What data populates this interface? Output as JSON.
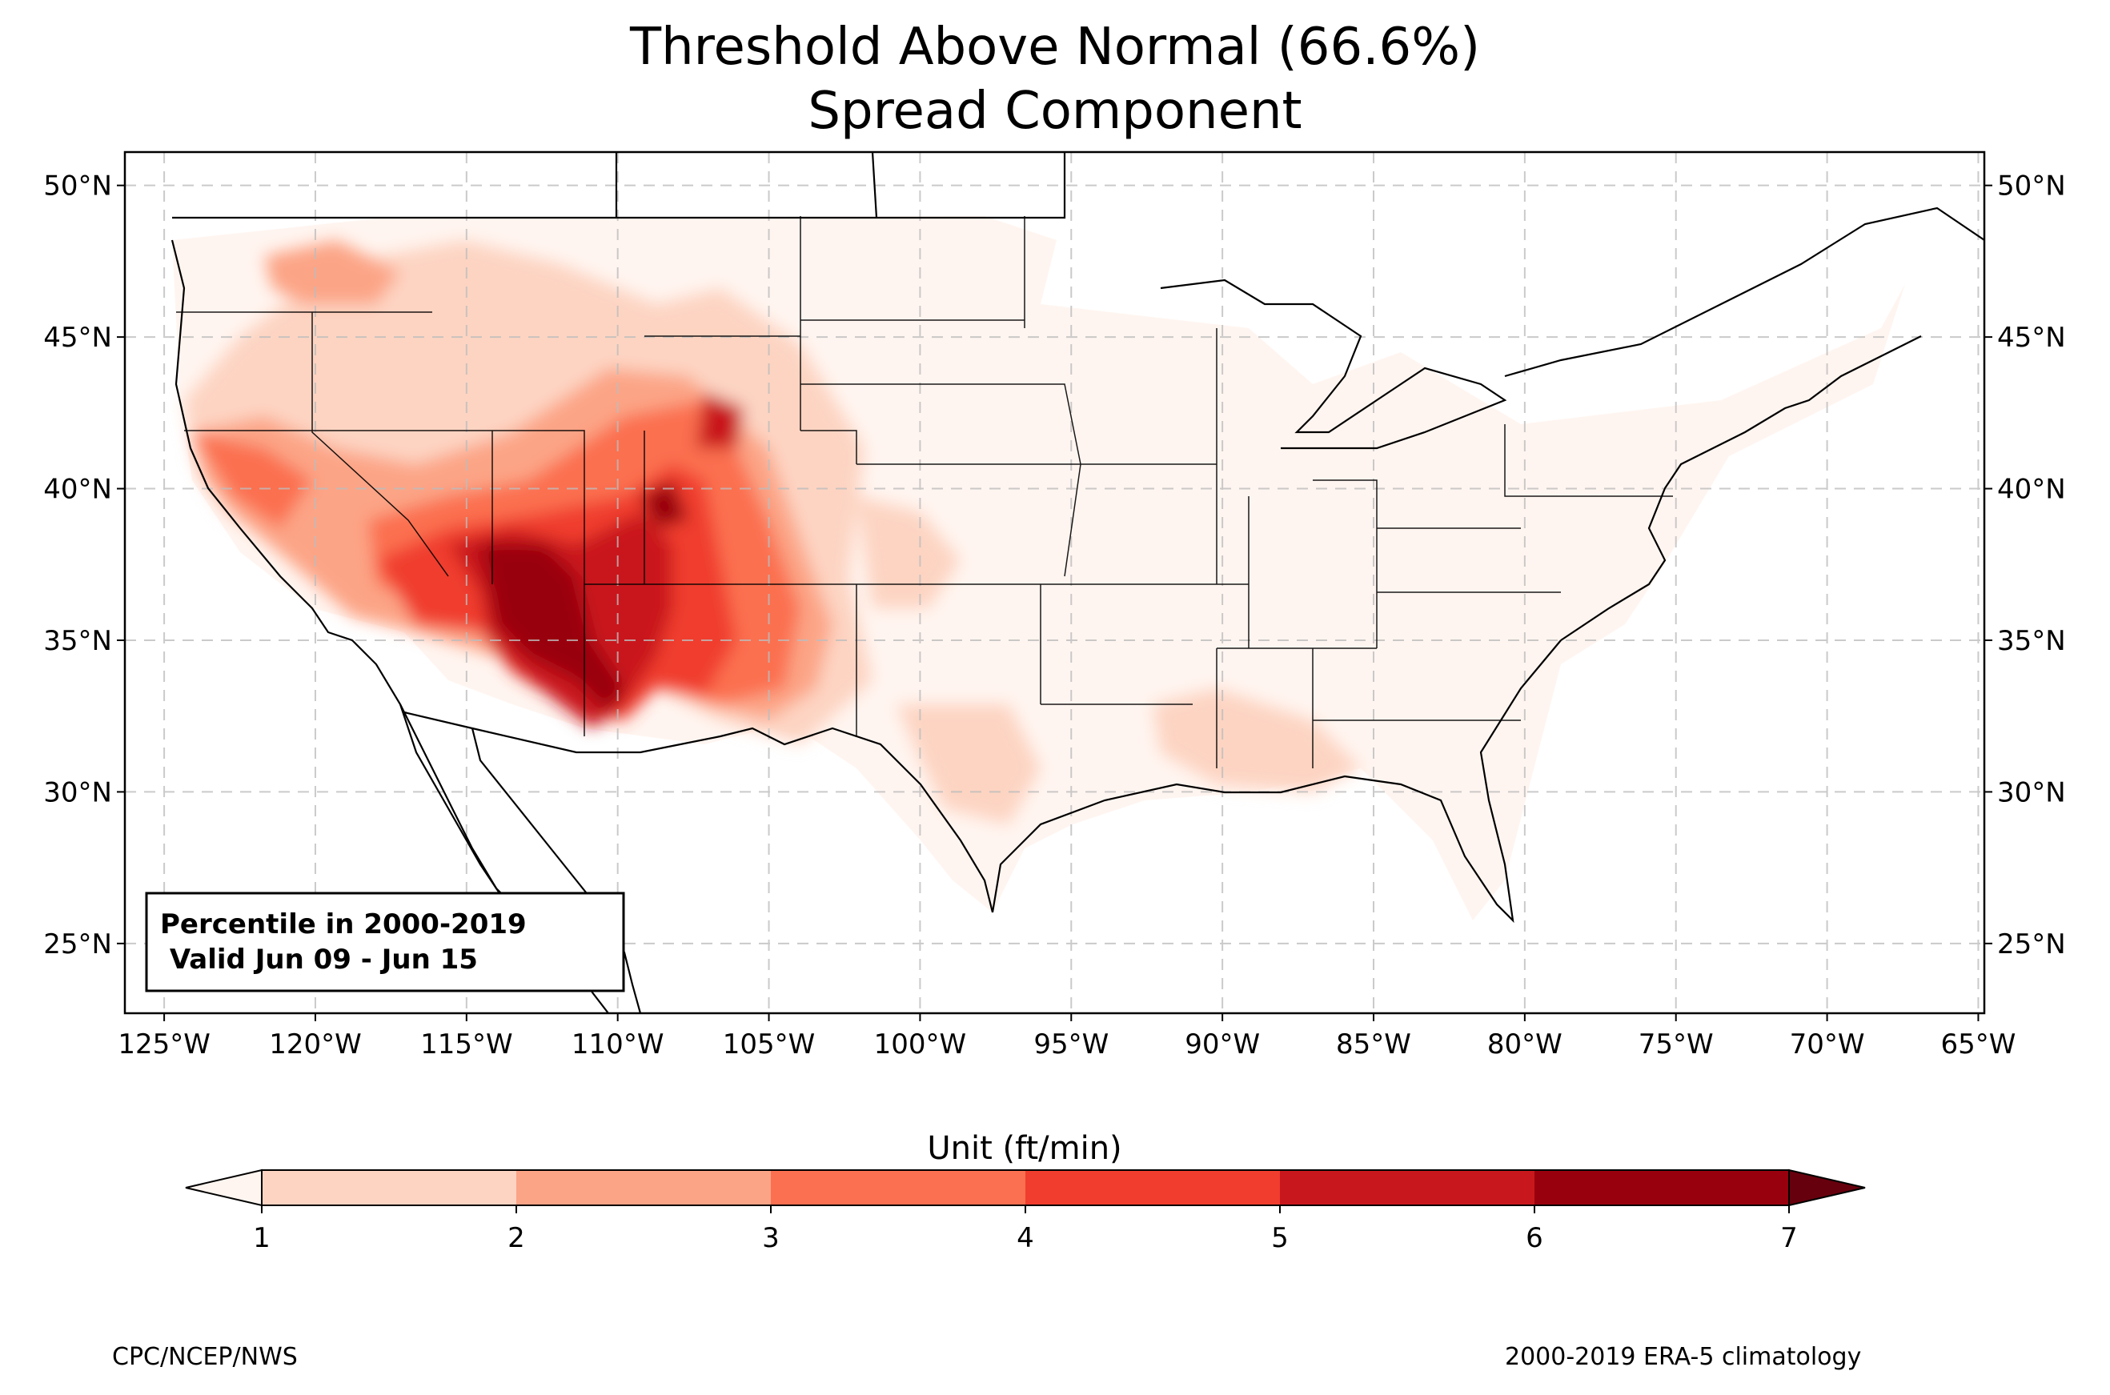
{
  "title": {
    "line1": "Threshold Above Normal (66.6%)",
    "line2": "Spread Component"
  },
  "map": {
    "extent": {
      "lon": [
        -126.3,
        -64.8
      ],
      "lat": [
        22.7,
        51.1
      ]
    },
    "lon_ticks": [
      -125,
      -120,
      -115,
      -110,
      -105,
      -100,
      -95,
      -90,
      -85,
      -80,
      -75,
      -70,
      -65
    ],
    "lat_ticks": [
      25,
      30,
      35,
      40,
      45,
      50
    ],
    "lon_tick_labels": [
      "125°W",
      "120°W",
      "115°W",
      "110°W",
      "105°W",
      "100°W",
      "95°W",
      "90°W",
      "85°W",
      "80°W",
      "75°W",
      "70°W",
      "65°W"
    ],
    "lat_tick_labels": [
      "25°N",
      "30°N",
      "35°N",
      "40°N",
      "45°N",
      "50°N"
    ],
    "gridlines": true
  },
  "info_box": {
    "line1": "Percentile in 2000-2019",
    "line2": " Valid Jun 09 - Jun 15"
  },
  "colorbar": {
    "title": "Unit (ft/min)",
    "ticks": [
      "1",
      "2",
      "3",
      "4",
      "5",
      "6",
      "7"
    ],
    "colors": [
      "#fff5f0",
      "#fdd4c2",
      "#fca486",
      "#fb7050",
      "#f03d2d",
      "#c9181d",
      "#99000d",
      "#67000d"
    ],
    "extend": "both"
  },
  "footer": {
    "left": "CPC/NCEP/NWS",
    "right": "2000-2019 ERA-5 climatology"
  }
}
